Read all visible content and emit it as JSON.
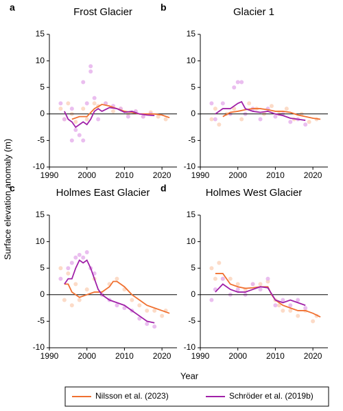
{
  "y_label": "Surface elevation anomaly (m)",
  "x_label": "Year",
  "chart_data": [
    {
      "type": "line",
      "panel": "a",
      "title": "Frost Glacier",
      "xlim": [
        1990,
        2024
      ],
      "ylim": [
        -10,
        15
      ],
      "xticks": [
        1990,
        2000,
        2010,
        2020
      ],
      "yticks": [
        -10,
        -5,
        0,
        5,
        10,
        15
      ],
      "zero_line": true,
      "series": [
        {
          "name": "Nilsson et al. (2023)",
          "color": "#f07030",
          "x": [
            1996,
            1998,
            2000,
            2002,
            2004,
            2006,
            2008,
            2010,
            2012,
            2014,
            2016,
            2018,
            2020,
            2022
          ],
          "values": [
            -1,
            -0.5,
            -0.5,
            1,
            1.8,
            1.5,
            1,
            0.5,
            0.3,
            0,
            0,
            0,
            -0.2,
            -0.7
          ]
        },
        {
          "name": "Schröder et al. (2019b)",
          "color": "#a020a8",
          "x": [
            1994,
            1995,
            1996,
            1997,
            1998,
            1999,
            2000,
            2001,
            2002,
            2003,
            2004,
            2006,
            2008,
            2010,
            2012,
            2014,
            2016,
            2018
          ],
          "values": [
            0.5,
            -1,
            -1.5,
            -2.5,
            -2,
            -1.5,
            -2,
            -1,
            0.5,
            1,
            0.5,
            1.2,
            1,
            0.3,
            0.5,
            0,
            -0.2,
            -0.3
          ]
        }
      ],
      "points": [
        {
          "color": "#fcd5bd",
          "x": [
            1993,
            1994,
            1995,
            1996,
            1997,
            1999,
            2000,
            2002,
            2003,
            2005,
            2007,
            2009,
            2011,
            2013,
            2015,
            2017,
            2019,
            2021
          ],
          "values": [
            1,
            -1,
            2,
            0,
            -1.5,
            1,
            -1,
            2,
            1.5,
            2,
            0.5,
            1,
            0,
            0.5,
            -0.5,
            0.3,
            -0.5,
            -1
          ]
        },
        {
          "color": "#e6b3ec",
          "x": [
            1993,
            1994,
            1996,
            1996,
            1997,
            1998,
            1999,
            1999,
            2000,
            2001,
            2001,
            2002,
            2003,
            2005,
            2007,
            2009,
            2011,
            2013,
            2015,
            2017
          ],
          "values": [
            2,
            -1,
            -5,
            1,
            -3,
            -4,
            -5,
            6,
            2,
            9,
            8,
            3,
            -1,
            2,
            1.5,
            1,
            -0.5,
            0.5,
            -0.5,
            0
          ]
        }
      ]
    },
    {
      "type": "line",
      "panel": "b",
      "title": "Glacier 1",
      "xlim": [
        1990,
        2024
      ],
      "ylim": [
        -10,
        15
      ],
      "xticks": [
        1990,
        2000,
        2010,
        2020
      ],
      "yticks": [
        -10,
        -5,
        0,
        5,
        10,
        15
      ],
      "zero_line": true,
      "series": [
        {
          "name": "Nilsson et al. (2023)",
          "color": "#f07030",
          "x": [
            1996,
            1998,
            2000,
            2002,
            2004,
            2006,
            2008,
            2010,
            2012,
            2014,
            2016,
            2018,
            2020,
            2022
          ],
          "values": [
            -0.5,
            0.3,
            0.5,
            0.8,
            1,
            1,
            0.8,
            0.5,
            0.5,
            0.3,
            -0.2,
            -0.5,
            -0.8,
            -1
          ]
        },
        {
          "name": "Schröder et al. (2019b)",
          "color": "#a020a8",
          "x": [
            1994,
            1996,
            1998,
            2000,
            2001,
            2002,
            2004,
            2006,
            2008,
            2010,
            2012,
            2014,
            2016,
            2018
          ],
          "values": [
            0,
            1,
            1,
            2,
            2.3,
            1,
            0.5,
            0.3,
            0.5,
            0,
            -0.3,
            -0.8,
            -1,
            -1.2
          ]
        }
      ],
      "points": [
        {
          "color": "#fcd5bd",
          "x": [
            1993,
            1994,
            1995,
            1997,
            1999,
            2001,
            2003,
            2005,
            2007,
            2009,
            2011,
            2013,
            2015,
            2017,
            2019,
            2021
          ],
          "values": [
            -1,
            1,
            -2,
            0,
            1,
            -1,
            2,
            1,
            0,
            1.5,
            0,
            1,
            -1,
            0,
            -1.5,
            -1
          ]
        },
        {
          "color": "#e6b3ec",
          "x": [
            1993,
            1994,
            1996,
            1998,
            1999,
            2000,
            2001,
            2002,
            2004,
            2006,
            2008,
            2010,
            2012,
            2014,
            2016,
            2018
          ],
          "values": [
            2,
            -1,
            2,
            0,
            5,
            6,
            6,
            0,
            1,
            -1,
            1,
            -0.5,
            0,
            -1.5,
            -1,
            -2
          ]
        }
      ]
    },
    {
      "type": "line",
      "panel": "c",
      "title": "Holmes East Glacier",
      "xlim": [
        1990,
        2024
      ],
      "ylim": [
        -10,
        15
      ],
      "xticks": [
        1990,
        2000,
        2010,
        2020
      ],
      "yticks": [
        -10,
        -5,
        0,
        5,
        10,
        15
      ],
      "zero_line": true,
      "series": [
        {
          "name": "Nilsson et al. (2023)",
          "color": "#f07030",
          "x": [
            1994,
            1995,
            1996,
            1998,
            2000,
            2002,
            2004,
            2006,
            2007,
            2008,
            2010,
            2012,
            2014,
            2016,
            2018,
            2020,
            2022
          ],
          "values": [
            2,
            2,
            0.5,
            -0.5,
            0,
            0.5,
            0.5,
            1.5,
            2.5,
            2.5,
            1.5,
            0,
            -1,
            -2,
            -2.5,
            -3,
            -3.5
          ]
        },
        {
          "name": "Schröder et al. (2019b)",
          "color": "#a020a8",
          "x": [
            1994,
            1995,
            1996,
            1997,
            1998,
            1999,
            2000,
            2001,
            2002,
            2003,
            2004,
            2006,
            2008,
            2010,
            2012,
            2014,
            2016,
            2018
          ],
          "values": [
            2,
            3,
            3,
            5,
            6.5,
            6,
            6.5,
            5,
            3,
            1,
            0,
            -1,
            -1.5,
            -2,
            -3,
            -4,
            -5,
            -5.3
          ]
        }
      ],
      "points": [
        {
          "color": "#fcd5bd",
          "x": [
            1993,
            1994,
            1995,
            1996,
            1997,
            1998,
            2000,
            2002,
            2004,
            2006,
            2008,
            2010,
            2012,
            2014,
            2016,
            2018,
            2020,
            2021
          ],
          "values": [
            5,
            -1,
            4,
            -2,
            2,
            -1,
            1,
            3,
            0,
            2,
            3,
            1,
            -1,
            -2,
            -3,
            -3,
            -4,
            -3
          ]
        },
        {
          "color": "#e6b3ec",
          "x": [
            1993,
            1995,
            1996,
            1997,
            1998,
            1999,
            2000,
            2001,
            2002,
            2004,
            2006,
            2008,
            2010,
            2012,
            2014,
            2016,
            2018
          ],
          "values": [
            3,
            5,
            6,
            7,
            7.5,
            7,
            8,
            5,
            4,
            0,
            -1,
            -2,
            -2.5,
            -3,
            -4.5,
            -5.5,
            -6
          ]
        }
      ]
    },
    {
      "type": "line",
      "panel": "d",
      "title": "Holmes West Glacier",
      "xlim": [
        1990,
        2024
      ],
      "ylim": [
        -10,
        15
      ],
      "xticks": [
        1990,
        2000,
        2010,
        2020
      ],
      "yticks": [
        -10,
        -5,
        0,
        5,
        10,
        15
      ],
      "zero_line": true,
      "series": [
        {
          "name": "Nilsson et al. (2023)",
          "color": "#f07030",
          "x": [
            1994,
            1996,
            1998,
            2000,
            2002,
            2004,
            2006,
            2008,
            2009,
            2010,
            2011,
            2012,
            2014,
            2016,
            2018,
            2020,
            2022
          ],
          "values": [
            4,
            4,
            2,
            1.5,
            1.2,
            1.3,
            1.5,
            1.5,
            0,
            -1,
            -1.5,
            -2,
            -2.5,
            -3,
            -3,
            -3.5,
            -4.2
          ]
        },
        {
          "name": "Schröder et al. (2019b)",
          "color": "#a020a8",
          "x": [
            1994,
            1996,
            1998,
            2000,
            2002,
            2004,
            2006,
            2008,
            2010,
            2012,
            2014,
            2016,
            2018
          ],
          "values": [
            0.5,
            2,
            1,
            0.5,
            0.5,
            1,
            1.5,
            1.3,
            -1,
            -1.5,
            -1,
            -1.5,
            -2
          ]
        }
      ],
      "points": [
        {
          "color": "#fcd5bd",
          "x": [
            1993,
            1994,
            1995,
            1996,
            1998,
            2000,
            2002,
            2004,
            2006,
            2008,
            2010,
            2011,
            2012,
            2014,
            2016,
            2018,
            2020,
            2021
          ],
          "values": [
            5,
            3,
            6,
            3,
            3,
            2,
            1,
            2,
            2,
            2.5,
            -1,
            -2,
            -3,
            -3,
            -4,
            -3,
            -5,
            -4
          ]
        },
        {
          "color": "#e6b3ec",
          "x": [
            1993,
            1994,
            1996,
            1998,
            2000,
            2002,
            2004,
            2006,
            2008,
            2010,
            2012,
            2014,
            2016,
            2018
          ],
          "values": [
            -1,
            1,
            3,
            0,
            1,
            0,
            2,
            1,
            3,
            -2,
            -1,
            -2,
            -1,
            -2.5
          ]
        }
      ]
    }
  ]
}
